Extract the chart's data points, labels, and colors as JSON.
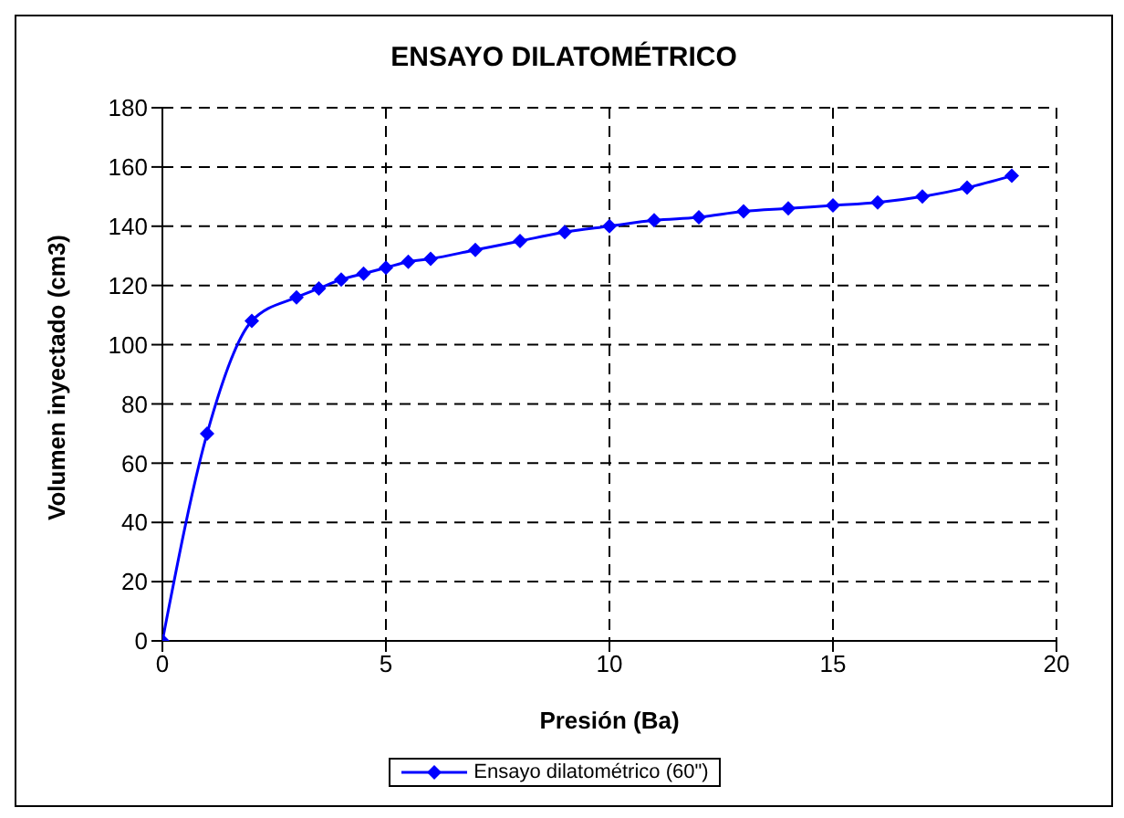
{
  "chart_data": {
    "type": "line",
    "title": "ENSAYO DILATOMÉTRICO",
    "xlabel": "Presión (Ba)",
    "ylabel": "Volumen inyectado (cm3)",
    "x": [
      0,
      1,
      2,
      3,
      3.5,
      4,
      4.5,
      5,
      5.5,
      6,
      7,
      8,
      9,
      10,
      11,
      12,
      13,
      14,
      15,
      16,
      17,
      18,
      19
    ],
    "series": [
      {
        "name": "Ensayo dilatométrico (60\")",
        "color": "#0000ff",
        "values": [
          0,
          70,
          108,
          116,
          119,
          122,
          124,
          126,
          128,
          129,
          132,
          135,
          138,
          140,
          142,
          143,
          145,
          146,
          147,
          148,
          150,
          153,
          157
        ]
      }
    ],
    "xlim": [
      0,
      20
    ],
    "xticks": [
      0,
      5,
      10,
      15,
      20
    ],
    "ylim": [
      0,
      180
    ],
    "yticks": [
      0,
      20,
      40,
      60,
      80,
      100,
      120,
      140,
      160,
      180
    ],
    "grid": true,
    "legend": "bottom",
    "marker": "diamond",
    "line_style": "solid"
  }
}
